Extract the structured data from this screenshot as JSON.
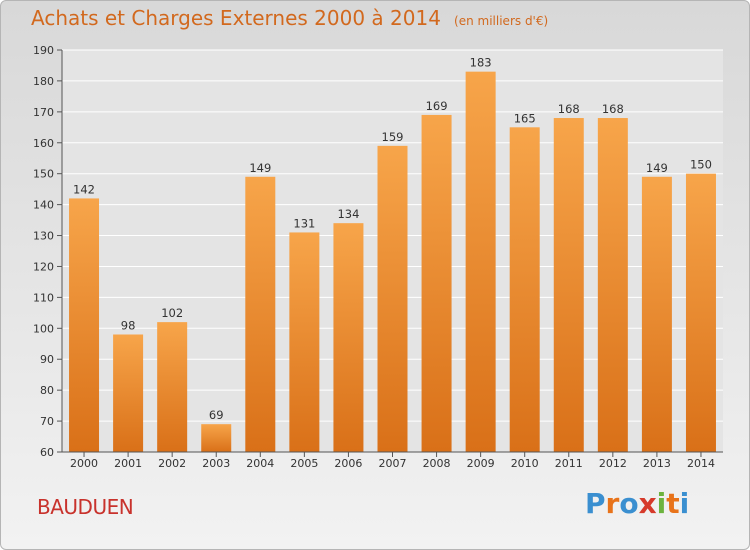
{
  "title": "Achats et Charges Externes 2000 à 2014",
  "subtitle": "(en milliers d'€)",
  "commune": "BAUDUEN",
  "logo": {
    "text": "Proxiti",
    "letters": [
      "P",
      "r",
      "o",
      "x",
      "i",
      "t",
      "i"
    ],
    "colors": [
      "#3a8fd0",
      "#e8731a",
      "#3a8fd0",
      "#d63a2a",
      "#6cb33e",
      "#e8731a",
      "#3a8fd0"
    ]
  },
  "colors": {
    "bar_top": "#f7a54a",
    "bar_bottom": "#d97018",
    "accent": "#d2691e",
    "grid": "#ffffff",
    "label": "#333333"
  },
  "chart_data": {
    "type": "bar",
    "categories": [
      "2000",
      "2001",
      "2002",
      "2003",
      "2004",
      "2005",
      "2006",
      "2007",
      "2008",
      "2009",
      "2010",
      "2011",
      "2012",
      "2013",
      "2014"
    ],
    "values": [
      142,
      98,
      102,
      69,
      149,
      131,
      134,
      159,
      169,
      183,
      165,
      168,
      168,
      149,
      150
    ],
    "title": "Achats et Charges Externes 2000 à 2014",
    "subtitle": "(en milliers d'€)",
    "xlabel": "",
    "ylabel": "",
    "ylim": [
      60,
      190
    ],
    "yticks": [
      60,
      70,
      80,
      90,
      100,
      110,
      120,
      130,
      140,
      150,
      160,
      170,
      180,
      190
    ],
    "grid": true,
    "legend": "none"
  }
}
